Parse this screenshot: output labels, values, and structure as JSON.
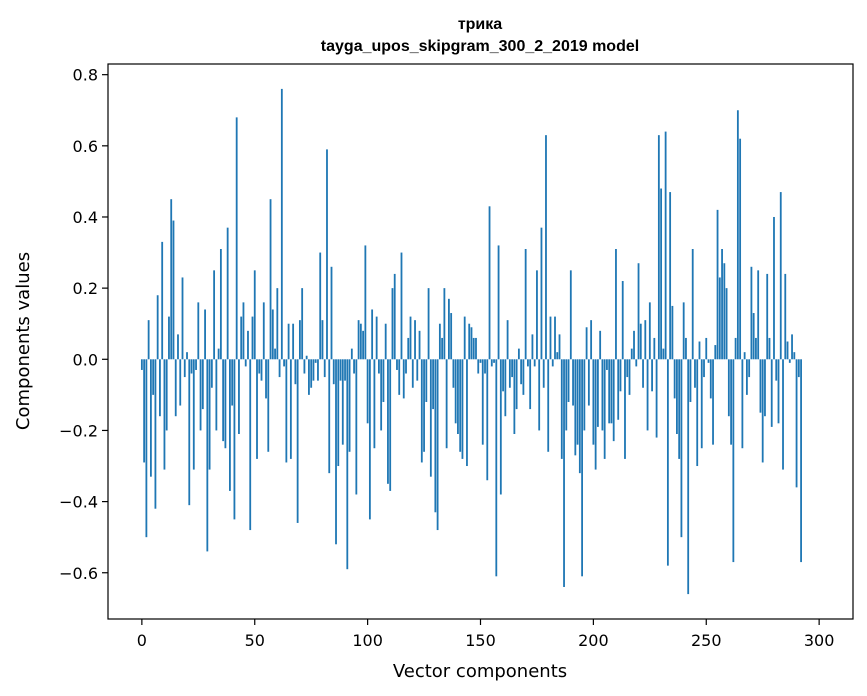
{
  "chart_data": {
    "type": "bar",
    "title": "трика",
    "subtitle": "tayga_upos_skipgram_300_2_2019 model",
    "xlabel": "Vector components",
    "ylabel": "Components values",
    "xlim": [
      -15,
      315
    ],
    "ylim": [
      -0.73,
      0.83
    ],
    "xticks": [
      0,
      50,
      100,
      150,
      200,
      250,
      300
    ],
    "yticks": [
      -0.6,
      -0.4,
      -0.2,
      0.0,
      0.2,
      0.4,
      0.6,
      0.8
    ],
    "ytick_labels": [
      "−0.6",
      "−0.4",
      "−0.2",
      "0.0",
      "0.2",
      "0.4",
      "0.6",
      "0.8"
    ],
    "bar_color": "#1f77b4",
    "values": [
      -0.03,
      -0.29,
      -0.5,
      0.11,
      -0.33,
      -0.1,
      -0.42,
      0.18,
      -0.16,
      0.33,
      -0.31,
      -0.2,
      0.12,
      0.45,
      0.39,
      -0.16,
      0.07,
      -0.13,
      0.23,
      -0.05,
      0.02,
      -0.41,
      -0.04,
      -0.31,
      -0.03,
      0.16,
      -0.2,
      -0.14,
      0.14,
      -0.54,
      -0.31,
      -0.08,
      0.25,
      -0.2,
      0.03,
      0.31,
      -0.23,
      -0.25,
      0.37,
      -0.37,
      -0.13,
      -0.45,
      0.68,
      -0.21,
      0.12,
      0.16,
      -0.02,
      0.08,
      -0.48,
      0.12,
      0.25,
      -0.28,
      -0.04,
      -0.06,
      0.16,
      -0.11,
      -0.26,
      0.45,
      0.14,
      0.03,
      0.2,
      -0.05,
      0.76,
      -0.02,
      -0.29,
      0.1,
      -0.28,
      0.1,
      -0.07,
      -0.46,
      0.11,
      0.2,
      -0.04,
      0.01,
      -0.1,
      -0.08,
      -0.06,
      -0.01,
      -0.06,
      0.3,
      0.11,
      -0.05,
      0.59,
      -0.32,
      0.26,
      -0.07,
      -0.52,
      -0.3,
      -0.06,
      -0.24,
      -0.06,
      -0.59,
      -0.26,
      0.03,
      -0.04,
      -0.38,
      0.11,
      0.1,
      0.08,
      0.32,
      -0.18,
      -0.45,
      0.14,
      -0.25,
      0.12,
      -0.04,
      -0.2,
      -0.12,
      0.1,
      -0.35,
      -0.37,
      0.2,
      0.24,
      -0.03,
      -0.1,
      0.3,
      -0.11,
      -0.04,
      0.06,
      0.12,
      -0.08,
      0.11,
      -0.06,
      0.08,
      -0.29,
      -0.26,
      -0.12,
      0.2,
      -0.33,
      -0.14,
      -0.43,
      -0.48,
      0.1,
      0.06,
      0.2,
      -0.25,
      0.17,
      0.13,
      -0.08,
      -0.18,
      -0.21,
      -0.26,
      -0.28,
      0.12,
      -0.3,
      0.1,
      0.09,
      0.06,
      0.06,
      -0.04,
      -0.01,
      -0.24,
      -0.04,
      -0.34,
      0.43,
      -0.02,
      -0.01,
      -0.61,
      0.32,
      -0.38,
      -0.09,
      -0.16,
      0.11,
      -0.08,
      -0.05,
      -0.21,
      -0.14,
      0.03,
      -0.07,
      -0.1,
      0.31,
      -0.02,
      -0.14,
      0.07,
      -0.02,
      0.25,
      -0.2,
      0.37,
      -0.08,
      0.63,
      -0.26,
      0.12,
      -0.02,
      0.12,
      0.02,
      0.07,
      -0.28,
      -0.64,
      -0.2,
      -0.12,
      0.25,
      -0.13,
      -0.27,
      -0.24,
      -0.32,
      -0.61,
      -0.2,
      0.09,
      -0.13,
      0.11,
      -0.24,
      -0.31,
      -0.19,
      0.08,
      -0.2,
      -0.28,
      -0.03,
      -0.18,
      -0.18,
      -0.23,
      0.31,
      -0.17,
      -0.09,
      0.22,
      -0.28,
      -0.05,
      -0.1,
      0.03,
      0.08,
      -0.02,
      0.27,
      0.1,
      -0.08,
      0.11,
      -0.2,
      0.16,
      -0.09,
      0.06,
      -0.22,
      0.63,
      0.48,
      0.03,
      0.64,
      -0.58,
      0.47,
      0.15,
      -0.11,
      -0.21,
      -0.28,
      -0.5,
      0.16,
      0.06,
      -0.66,
      -0.12,
      0.31,
      -0.08,
      -0.3,
      0.05,
      -0.25,
      -0.05,
      0.06,
      -0.01,
      -0.11,
      -0.24,
      0.04,
      0.42,
      0.23,
      0.31,
      0.27,
      0.2,
      -0.16,
      -0.24,
      -0.57,
      0.06,
      0.7,
      0.62,
      -0.25,
      0.02,
      -0.1,
      -0.05,
      0.26,
      0.13,
      0.06,
      0.25,
      -0.15,
      -0.29,
      -0.16,
      0.24,
      0.06,
      -0.19,
      0.4,
      -0.06,
      -0.18,
      0.47,
      -0.31,
      0.24,
      0.05,
      -0.01,
      0.07,
      0.02,
      -0.36,
      -0.05,
      -0.57
    ]
  }
}
